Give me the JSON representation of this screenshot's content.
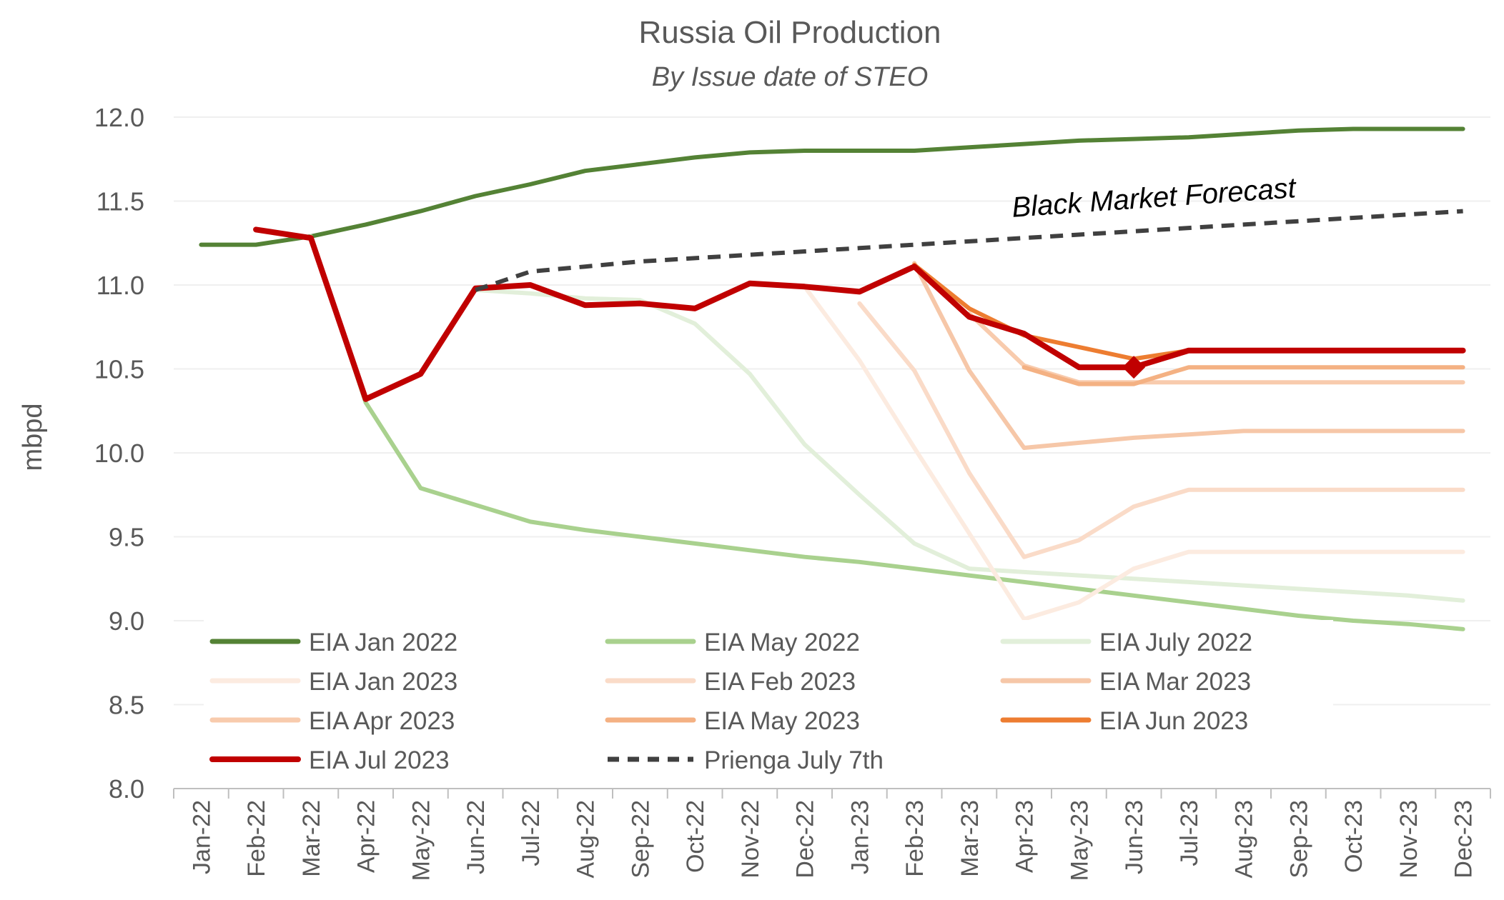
{
  "chart_data": {
    "type": "line",
    "title": "Russia Oil Production",
    "subtitle": "By Issue date of STEO",
    "xlabel": "",
    "ylabel": "mbpd",
    "ylim": [
      8.0,
      12.0
    ],
    "yticks": [
      "8.0",
      "8.5",
      "9.0",
      "9.5",
      "10.0",
      "10.5",
      "11.0",
      "11.5",
      "12.0"
    ],
    "grid": true,
    "legend_placement": "bottom-left",
    "annotation": "Black Market Forecast",
    "categories": [
      "Jan-22",
      "Feb-22",
      "Mar-22",
      "Apr-22",
      "May-22",
      "Jun-22",
      "Jul-22",
      "Aug-22",
      "Sep-22",
      "Oct-22",
      "Nov-22",
      "Dec-22",
      "Jan-23",
      "Feb-23",
      "Mar-23",
      "Apr-23",
      "May-23",
      "Jun-23",
      "Jul-23",
      "Aug-23",
      "Sep-23",
      "Oct-23",
      "Nov-23",
      "Dec-23"
    ],
    "series": [
      {
        "name": "EIA Jan 2022",
        "color": "#548235",
        "dashed": false,
        "values": [
          11.24,
          11.24,
          11.29,
          11.36,
          11.44,
          11.53,
          11.6,
          11.68,
          11.72,
          11.76,
          11.79,
          11.8,
          11.8,
          11.8,
          11.82,
          11.84,
          11.86,
          11.87,
          11.88,
          11.9,
          11.92,
          11.93,
          11.93,
          11.93
        ]
      },
      {
        "name": "EIA May 2022",
        "color": "#a9d18e",
        "dashed": false,
        "values": [
          null,
          null,
          11.29,
          10.3,
          9.79,
          9.69,
          9.59,
          9.54,
          9.5,
          9.46,
          9.42,
          9.38,
          9.35,
          9.31,
          9.27,
          9.23,
          9.19,
          9.15,
          9.11,
          9.07,
          9.03,
          9.0,
          8.98,
          8.95
        ]
      },
      {
        "name": "EIA July 2022",
        "color": "#e2efda",
        "dashed": false,
        "values": [
          null,
          null,
          null,
          null,
          null,
          10.97,
          10.95,
          10.92,
          10.91,
          10.77,
          10.47,
          10.05,
          9.75,
          9.46,
          9.31,
          9.29,
          9.27,
          9.25,
          9.23,
          9.21,
          9.19,
          9.17,
          9.15,
          9.12
        ]
      },
      {
        "name": "EIA Jan 2023",
        "color": "#fcebe0",
        "dashed": false,
        "values": [
          null,
          null,
          null,
          null,
          null,
          null,
          null,
          null,
          null,
          null,
          null,
          10.99,
          10.55,
          10.03,
          9.52,
          9.01,
          9.11,
          9.31,
          9.41,
          9.41,
          9.41,
          9.41,
          9.41,
          9.41
        ]
      },
      {
        "name": "EIA Feb 2023",
        "color": "#fadbc8",
        "dashed": false,
        "values": [
          null,
          null,
          null,
          null,
          null,
          null,
          null,
          null,
          null,
          null,
          null,
          null,
          10.89,
          10.49,
          9.88,
          9.38,
          9.48,
          9.68,
          9.78,
          9.78,
          9.78,
          9.78,
          9.78,
          9.78
        ]
      },
      {
        "name": "EIA Mar 2023",
        "color": "#f6c7a8",
        "dashed": false,
        "values": [
          null,
          null,
          null,
          null,
          null,
          null,
          null,
          null,
          null,
          null,
          null,
          null,
          null,
          11.13,
          10.49,
          10.03,
          10.06,
          10.09,
          10.11,
          10.13,
          10.13,
          10.13,
          10.13,
          10.13
        ]
      },
      {
        "name": "EIA Apr 2023",
        "color": "#f8cbad",
        "dashed": false,
        "values": [
          null,
          null,
          null,
          null,
          null,
          null,
          null,
          null,
          null,
          null,
          null,
          null,
          null,
          null,
          10.83,
          10.52,
          10.42,
          10.42,
          10.42,
          10.42,
          10.42,
          10.42,
          10.42,
          10.42
        ]
      },
      {
        "name": "EIA May 2023",
        "color": "#f4b183",
        "dashed": false,
        "values": [
          null,
          null,
          null,
          null,
          null,
          null,
          null,
          null,
          null,
          null,
          null,
          null,
          null,
          null,
          null,
          10.51,
          10.41,
          10.41,
          10.51,
          10.51,
          10.51,
          10.51,
          10.51,
          10.51
        ]
      },
      {
        "name": "EIA Jun 2023",
        "color": "#ed7d31",
        "dashed": false,
        "values": [
          null,
          null,
          null,
          null,
          null,
          null,
          null,
          null,
          null,
          null,
          null,
          null,
          null,
          11.12,
          10.86,
          10.7,
          10.63,
          10.56,
          10.61,
          10.61,
          10.61,
          10.61,
          10.61,
          10.61
        ]
      },
      {
        "name": "EIA Jul 2023",
        "color": "#c00000",
        "dashed": false,
        "values": [
          null,
          11.33,
          11.28,
          10.32,
          10.47,
          10.98,
          11.0,
          10.88,
          10.89,
          10.86,
          11.01,
          10.99,
          10.96,
          11.11,
          10.81,
          10.71,
          10.51,
          10.51,
          10.61,
          10.61,
          10.61,
          10.61,
          10.61,
          10.61
        ]
      },
      {
        "name": "Prienga July 7th",
        "color": "#404040",
        "dashed": true,
        "values": [
          null,
          null,
          null,
          null,
          null,
          10.97,
          11.08,
          11.11,
          11.14,
          11.16,
          11.18,
          11.2,
          11.22,
          11.24,
          11.26,
          11.28,
          11.3,
          11.32,
          11.34,
          11.36,
          11.38,
          11.4,
          11.42,
          11.44
        ]
      }
    ],
    "marker": {
      "series": "EIA Jul 2023",
      "category": "Jun-23",
      "value": 10.51,
      "shape": "diamond"
    }
  }
}
